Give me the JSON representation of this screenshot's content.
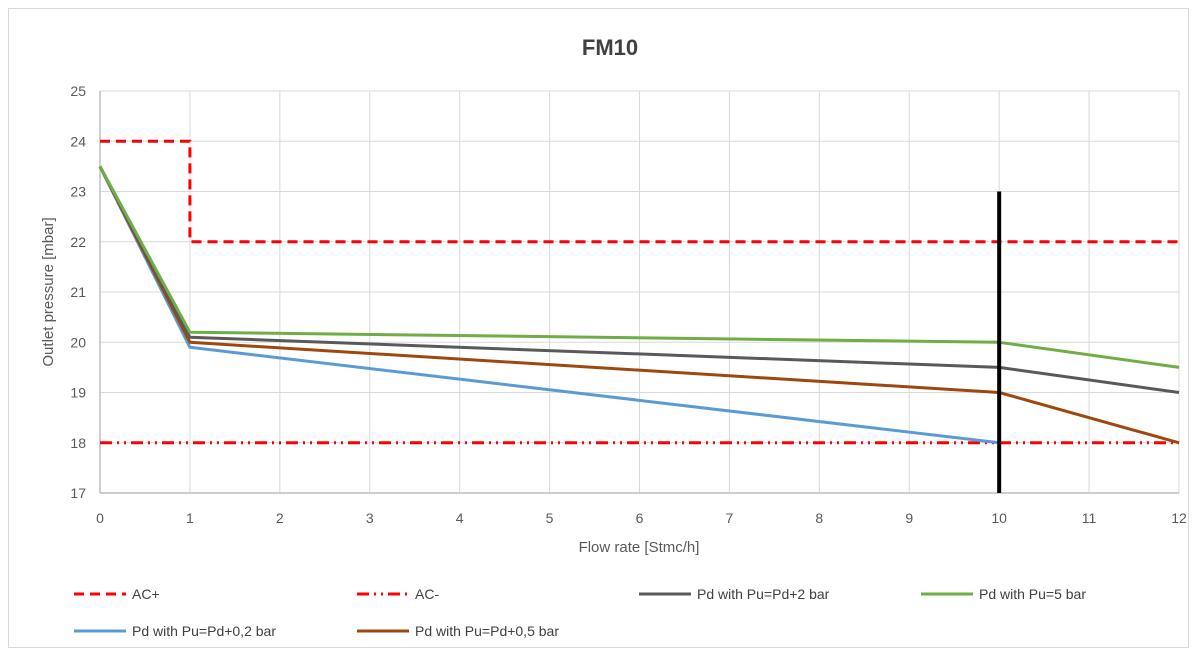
{
  "chart_data": {
    "type": "line",
    "title": "FM10",
    "xlabel": "Flow rate [Stmc/h]",
    "ylabel": "Outlet pressure [mbar]",
    "xlim": [
      0,
      12
    ],
    "ylim": [
      17,
      25
    ],
    "x_ticks": [
      "0",
      "1",
      "2",
      "3",
      "4",
      "5",
      "6",
      "7",
      "8",
      "9",
      "10",
      "11",
      "12"
    ],
    "y_ticks": [
      "17",
      "18",
      "19",
      "20",
      "21",
      "22",
      "23",
      "24",
      "25"
    ],
    "grid": true,
    "legend_position": "bottom",
    "series": [
      {
        "name": "AC+",
        "color": "#ff0000",
        "dash": "dashed",
        "points": [
          [
            0,
            24
          ],
          [
            1,
            24
          ],
          [
            1,
            22
          ],
          [
            12,
            22
          ]
        ]
      },
      {
        "name": "AC-",
        "color": "#ff0000",
        "dash": "dash-dot-dot",
        "points": [
          [
            0,
            18
          ],
          [
            12,
            18
          ]
        ]
      },
      {
        "name": "Pd with Pu=Pd+2 bar",
        "color": "#595959",
        "dash": "solid",
        "points": [
          [
            0,
            23.5
          ],
          [
            1,
            20.1
          ],
          [
            10,
            19.5
          ],
          [
            12,
            19
          ]
        ]
      },
      {
        "name": "Pd with Pu=5 bar",
        "color": "#70ad47",
        "dash": "solid",
        "points": [
          [
            0,
            23.5
          ],
          [
            1,
            20.2
          ],
          [
            10,
            20
          ],
          [
            12,
            19.5
          ]
        ]
      },
      {
        "name": "Pd with Pu=Pd+0,2 bar",
        "color": "#5b9bd5",
        "dash": "solid",
        "points": [
          [
            0,
            23.5
          ],
          [
            1,
            19.9
          ],
          [
            10,
            18
          ]
        ]
      },
      {
        "name": "Pd with Pu=Pd+0,5 bar",
        "color": "#9e480e",
        "dash": "solid",
        "points": [
          [
            0,
            23.5
          ],
          [
            1,
            20
          ],
          [
            10,
            19
          ],
          [
            12,
            18
          ]
        ]
      }
    ],
    "marker_line": {
      "x": 10,
      "y_from": 17,
      "y_to": 23,
      "color": "#000000"
    }
  }
}
